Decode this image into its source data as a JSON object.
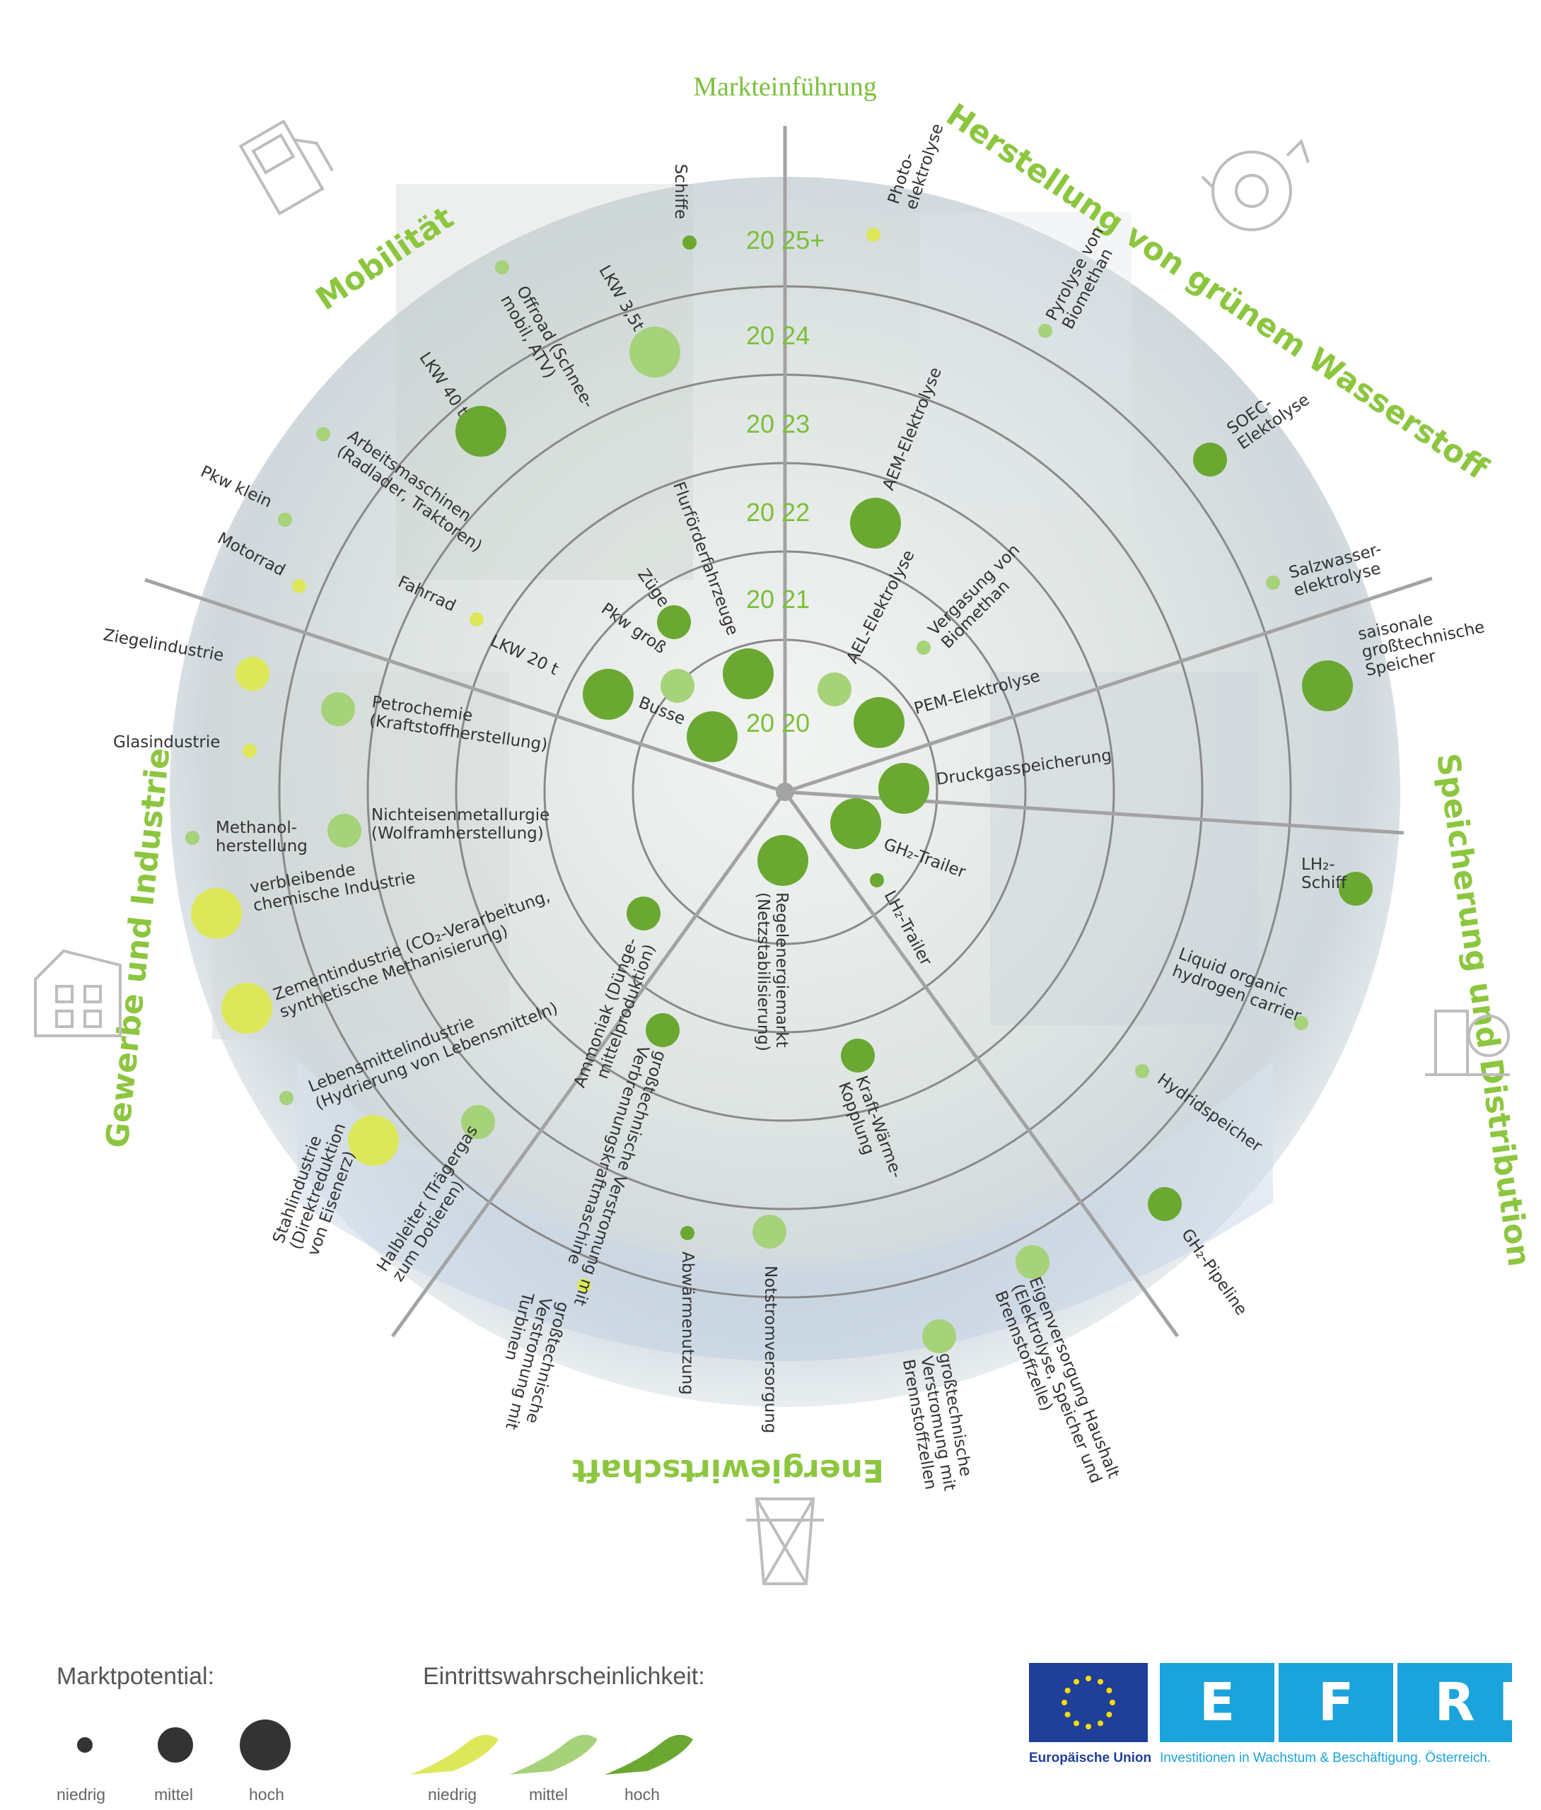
{
  "title": "Markteinführung",
  "years": [
    "20 20",
    "20 21",
    "20 22",
    "20 23",
    "20 24",
    "20 25+"
  ],
  "sectors": [
    {
      "name": "Herstellung von grünem Wasserstoff"
    },
    {
      "name": "Speicherung und Distribution"
    },
    {
      "name": "Energiewirtschaft"
    },
    {
      "name": "Gewerbe und Industrie"
    },
    {
      "name": "Mobilität"
    }
  ],
  "colors": {
    "niedrig": "#dce85a",
    "mittel": "#a6d27a",
    "hoch": "#6aa832"
  },
  "applications": [
    {
      "label": "Photo-\nelektrolyse",
      "year": "20 25+",
      "potential": "niedrig",
      "probability": "niedrig"
    },
    {
      "label": "Pyrolyse von\nBiomethan",
      "year": "20 24",
      "potential": "niedrig",
      "probability": "mittel"
    },
    {
      "label": "SOEC-\nElektolyse",
      "year": "20 24",
      "potential": "mittel",
      "probability": "hoch"
    },
    {
      "label": "Salzwasser-\nelektrolyse",
      "year": "20 25+",
      "potential": "niedrig",
      "probability": "mittel"
    },
    {
      "label": "AEM-Elektrolyse",
      "year": "20 22",
      "potential": "hoch",
      "probability": "hoch"
    },
    {
      "label": "Vergasung von\nBiomethan",
      "year": "20 21",
      "potential": "niedrig",
      "probability": "mittel"
    },
    {
      "label": "AEL-Elektrolyse",
      "year": "20 20",
      "potential": "mittel",
      "probability": "mittel"
    },
    {
      "label": "PEM-Elektrolyse",
      "year": "20 20",
      "potential": "hoch",
      "probability": "hoch"
    },
    {
      "label": "saisonale\ngroßtechnische\nSpeicher",
      "year": "20 25+",
      "potential": "hoch",
      "probability": "hoch"
    },
    {
      "label": "Druckgasspeicherung",
      "year": "20 20",
      "potential": "hoch",
      "probability": "hoch"
    },
    {
      "label": "GH₂-Trailer",
      "year": "20 20",
      "potential": "hoch",
      "probability": "hoch"
    },
    {
      "label": "LH₂-Trailer",
      "year": "20 21",
      "potential": "niedrig",
      "probability": "hoch"
    },
    {
      "label": "LH₂-\nSchiff",
      "year": "20 25+",
      "potential": "mittel",
      "probability": "hoch"
    },
    {
      "label": "Liquid organic\nhydrogen carrier",
      "year": "20 25+",
      "potential": "niedrig",
      "probability": "mittel"
    },
    {
      "label": "Hydridspeicher",
      "year": "20 24",
      "potential": "niedrig",
      "probability": "mittel"
    },
    {
      "label": "GH₂-Pipeline",
      "year": "20 25+",
      "potential": "mittel",
      "probability": "hoch"
    },
    {
      "label": "Regelenergiemarkt\n(Netzstabilisierung)",
      "year": "20 20",
      "potential": "hoch",
      "probability": "hoch"
    },
    {
      "label": "Kraft-Wärme-\nKopplung",
      "year": "20 22",
      "potential": "mittel",
      "probability": "hoch"
    },
    {
      "label": "Eigenversorgung Haushalt\n(Elektrolyse, Speicher und\nBrennstoffzelle)",
      "year": "20 25+",
      "potential": "mittel",
      "probability": "mittel"
    },
    {
      "label": "großtechnische\nVerstromung mit\nBrennstoffzellen",
      "year": "20 25+",
      "potential": "mittel",
      "probability": "mittel"
    },
    {
      "label": "Notstromversorgung",
      "year": "20 24",
      "potential": "mittel",
      "probability": "mittel"
    },
    {
      "label": "Abwärmenutzung",
      "year": "20 24",
      "potential": "niedrig",
      "probability": "hoch"
    },
    {
      "label": "großtechnische\nVerstromung mit\nTurbinen",
      "year": "20 25+",
      "potential": "niedrig",
      "probability": "niedrig"
    },
    {
      "label": "großtechnische Verstromung mit\nVerbrennungskraftmaschine",
      "year": "20 22",
      "potential": "mittel",
      "probability": "hoch"
    },
    {
      "label": "Ammoniak (Dünge-\nmittelproduktion)",
      "year": "20 21",
      "potential": "mittel",
      "probability": "hoch"
    },
    {
      "label": "Halbleiter (Trägergas\nzum Dotieren)",
      "year": "20 24",
      "potential": "mittel",
      "probability": "mittel"
    },
    {
      "label": "Stahlindustrie\n(Direktreduktion\nvon Eisenerz)",
      "year": "20 25+",
      "potential": "hoch",
      "probability": "niedrig"
    },
    {
      "label": "Lebensmittelindustrie\n(Hydrierung von Lebensmitteln)",
      "year": "20 25+",
      "potential": "niedrig",
      "probability": "mittel"
    },
    {
      "label": "Zementindustrie (CO₂-Verarbeitung,\nsynthetische Methanisierung)",
      "year": "20 25+",
      "potential": "hoch",
      "probability": "niedrig"
    },
    {
      "label": "verbleibende\nchemische Industrie",
      "year": "20 25+",
      "potential": "hoch",
      "probability": "niedrig"
    },
    {
      "label": "Methanol-\nherstellung",
      "year": "20 25+",
      "potential": "niedrig",
      "probability": "mittel"
    },
    {
      "label": "Nichteisenmetallurgie\n(Wolframherstellung)",
      "year": "20 23",
      "potential": "mittel",
      "probability": "mittel"
    },
    {
      "label": "Glasindustrie",
      "year": "20 25+",
      "potential": "niedrig",
      "probability": "niedrig"
    },
    {
      "label": "Petrochemie\n(Kraftstoffherstellung)",
      "year": "20 24",
      "potential": "mittel",
      "probability": "mittel"
    },
    {
      "label": "Ziegelindustrie",
      "year": "20 25+",
      "potential": "mittel",
      "probability": "niedrig"
    },
    {
      "label": "Busse",
      "year": "20 20",
      "potential": "hoch",
      "probability": "hoch"
    },
    {
      "label": "LKW 20 t",
      "year": "20 21",
      "potential": "hoch",
      "probability": "hoch"
    },
    {
      "label": "Pkw groß",
      "year": "20 20",
      "potential": "mittel",
      "probability": "mittel"
    },
    {
      "label": "Züge",
      "year": "20 21",
      "potential": "mittel",
      "probability": "hoch"
    },
    {
      "label": "Flurförderfahrzeuge",
      "year": "20 20",
      "potential": "hoch",
      "probability": "hoch"
    },
    {
      "label": "Fahrrad",
      "year": "20 23",
      "potential": "niedrig",
      "probability": "niedrig"
    },
    {
      "label": "Motorrad",
      "year": "20 25+",
      "potential": "niedrig",
      "probability": "niedrig"
    },
    {
      "label": "Pkw klein",
      "year": "20 25+",
      "potential": "niedrig",
      "probability": "mittel"
    },
    {
      "label": "Arbeitsmaschinen\n(Radlader, Traktoren)",
      "year": "20 25+",
      "potential": "niedrig",
      "probability": "mittel"
    },
    {
      "label": "LKW 40 t",
      "year": "20 23",
      "potential": "hoch",
      "probability": "hoch"
    },
    {
      "label": "LKW 3,5t",
      "year": "20 23",
      "potential": "hoch",
      "probability": "mittel"
    },
    {
      "label": "Offroad (Schnee-\nmobil, ATV)",
      "year": "20 25+",
      "potential": "niedrig",
      "probability": "mittel"
    },
    {
      "label": "Schiffe",
      "year": "20 25+",
      "potential": "niedrig",
      "probability": "hoch"
    }
  ],
  "legend": {
    "potential_title": "Marktpotential:",
    "potential_items": [
      "niedrig",
      "mittel",
      "hoch"
    ],
    "probability_title": "Eintrittswahrscheinlichkeit:",
    "probability_items": [
      "niedrig",
      "mittel",
      "hoch"
    ]
  },
  "logos": {
    "eu_caption": "Europäische Union",
    "efre_letters": [
      "E",
      "F",
      "R",
      "E"
    ],
    "efre_caption": "Investitionen in Wachstum & Beschäftigung. Österreich."
  }
}
